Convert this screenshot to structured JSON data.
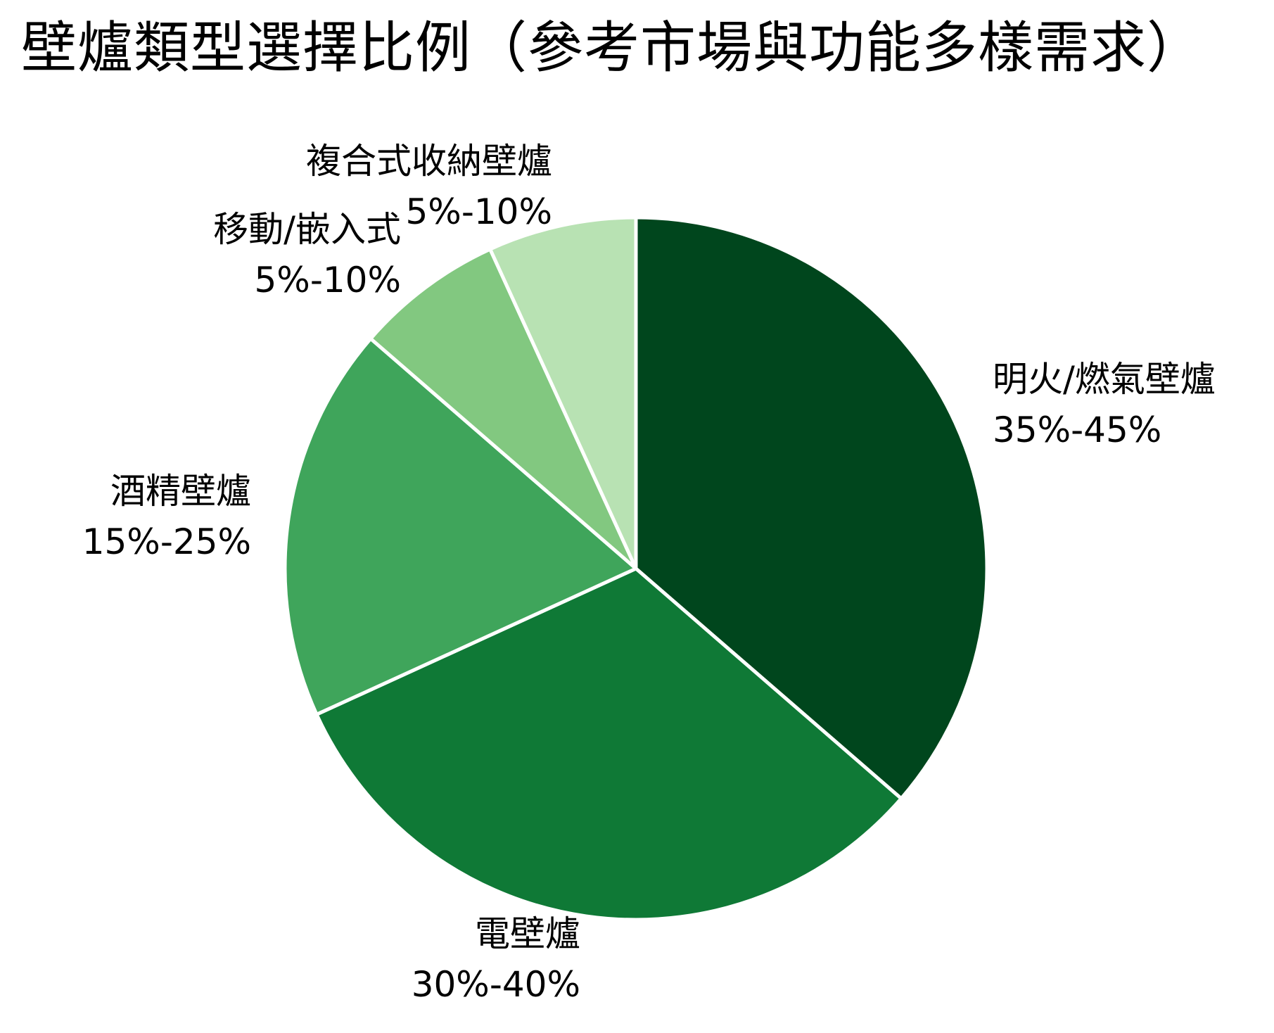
{
  "title": "壁爐類型選擇比例（參考市場與功能多樣需求）",
  "chart_data": {
    "type": "pie",
    "title": "壁爐類型選擇比例（參考市場與功能多樣需求）",
    "start_angle": "90 (12 o'clock), clockwise",
    "categories": [
      "明火/燃氣壁爐",
      "電壁爐",
      "酒精壁爐",
      "移動/嵌入式",
      "複合式收納壁爐"
    ],
    "range_labels": [
      "35%-45%",
      "30%-40%",
      "15%-25%",
      "5%-10%",
      "5%-10%"
    ],
    "values": [
      40,
      35,
      20,
      7.5,
      7.5
    ],
    "shares_percent": [
      36.4,
      31.8,
      18.2,
      6.8,
      6.8
    ],
    "colors": [
      "#00461d",
      "#0f7936",
      "#3fa55b",
      "#82c880",
      "#b8e2b3"
    ],
    "edge_color": "#ffffff",
    "legend": "none",
    "center": [
      904,
      808
    ],
    "radius": 499
  },
  "labels": [
    {
      "name": "明火/燃氣壁爐",
      "range": "35%-45%"
    },
    {
      "name": "電壁爐",
      "range": "30%-40%"
    },
    {
      "name": "酒精壁爐",
      "range": "15%-25%"
    },
    {
      "name": "移動/嵌入式",
      "range": "5%-10%"
    },
    {
      "name": "複合式收納壁爐",
      "range": "5%-10%"
    }
  ]
}
